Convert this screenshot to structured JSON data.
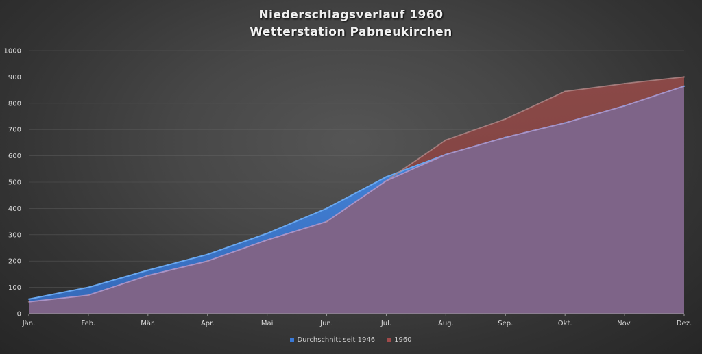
{
  "chart_data": {
    "type": "area",
    "title": "Niederschlagsverlauf 1960",
    "subtitle": "Wetterstation Pabneukirchen",
    "xlabel": "",
    "ylabel": "",
    "categories": [
      "Jän.",
      "Feb.",
      "Mär.",
      "Apr.",
      "Mai",
      "Jun.",
      "Jul.",
      "Aug.",
      "Sep.",
      "Okt.",
      "Nov.",
      "Dez."
    ],
    "ylim": [
      0,
      1000
    ],
    "yticks": [
      "0",
      "100",
      "200",
      "300",
      "400",
      "500",
      "600",
      "700",
      "800",
      "900",
      "1000"
    ],
    "ytick_values": [
      0,
      100,
      200,
      300,
      400,
      500,
      600,
      700,
      800,
      900,
      1000
    ],
    "grid": true,
    "legend_position": "bottom",
    "series": [
      {
        "name": "Durchschnitt seit 1946",
        "color": "#4a86d8",
        "values": [
          55,
          100,
          165,
          225,
          305,
          400,
          520,
          605,
          670,
          725,
          790,
          865
        ]
      },
      {
        "name": "1960",
        "color": "#8c4a4a",
        "values": [
          45,
          70,
          145,
          200,
          280,
          350,
          505,
          660,
          740,
          845,
          875,
          900
        ]
      }
    ]
  }
}
